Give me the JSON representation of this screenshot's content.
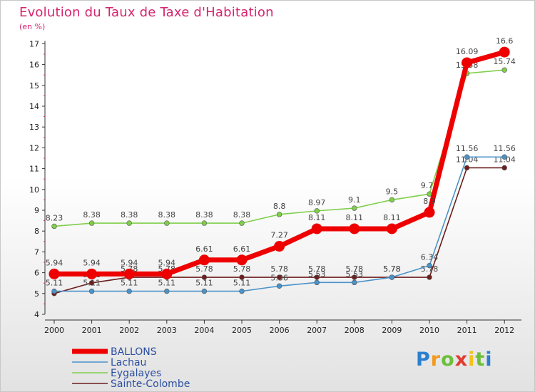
{
  "header": {
    "title": "Evolution du Taux de Taxe d'Habitation",
    "unit": "(en %)"
  },
  "logo": {
    "letters": [
      "P",
      "r",
      "o",
      "x",
      "i",
      "t",
      "i"
    ],
    "colors": [
      "#2a7fd0",
      "#f29a1e",
      "#6bbf3a",
      "#e23b2f",
      "#f2c21e",
      "#6bbf3a",
      "#2a7fd0"
    ]
  },
  "chart_data": {
    "type": "line",
    "title": "Evolution du Taux de Taxe d'Habitation",
    "ylabel": "(en %)",
    "xlabel": "",
    "ylim": [
      4,
      17
    ],
    "yticks": [
      4,
      5,
      6,
      7,
      8,
      9,
      10,
      11,
      12,
      13,
      14,
      15,
      16,
      17
    ],
    "x": [
      "2000",
      "2001",
      "2002",
      "2003",
      "2004",
      "2005",
      "2006",
      "2007",
      "2008",
      "2009",
      "2010",
      "2011",
      "2012"
    ],
    "grid": false,
    "legend": "bottom-left",
    "series": [
      {
        "name": "Sainte-Colombe",
        "color": "#6e1e1e",
        "values": [
          5.0,
          5.51,
          5.78,
          5.78,
          5.78,
          5.78,
          5.78,
          5.78,
          5.78,
          5.78,
          5.78,
          11.04,
          11.04
        ],
        "labels": [
          "",
          "5.51",
          "5.78",
          "5.78",
          "5.78",
          "5.78",
          "5.78",
          "5.78",
          "5.78",
          "5.78",
          "5.78",
          "11.04",
          "11.04"
        ]
      },
      {
        "name": "Lachau",
        "color": "#4a93c8",
        "values": [
          5.11,
          5.11,
          5.11,
          5.11,
          5.11,
          5.11,
          5.36,
          5.53,
          5.53,
          5.78,
          6.34,
          11.56,
          11.56
        ],
        "labels": [
          "5.11",
          "5.11",
          "5.11",
          "5.11",
          "5.11",
          "5.11",
          "5.36",
          "5.53",
          "5.53",
          "5.78",
          "6.34",
          "11.56",
          "11.56"
        ]
      },
      {
        "name": "Eygalayes",
        "color": "#7fcf4a",
        "values": [
          8.23,
          8.38,
          8.38,
          8.38,
          8.38,
          8.38,
          8.8,
          8.97,
          9.1,
          9.5,
          9.78,
          15.58,
          15.74
        ],
        "labels": [
          "8.23",
          "8.38",
          "8.38",
          "8.38",
          "8.38",
          "8.38",
          "8.8",
          "8.97",
          "9.1",
          "9.5",
          "9.78",
          "15.58",
          "15.74"
        ]
      },
      {
        "name": "BALLONS",
        "color": "#ee0000",
        "values": [
          5.94,
          5.94,
          5.94,
          5.94,
          6.61,
          6.61,
          7.27,
          8.11,
          8.11,
          8.11,
          8.9,
          16.09,
          16.6
        ],
        "labels": [
          "5.94",
          "5.94",
          "5.94",
          "5.94",
          "6.61",
          "6.61",
          "7.27",
          "8.11",
          "8.11",
          "8.11",
          "8.9",
          "16.09",
          "16.6"
        ]
      }
    ],
    "legend_order": [
      "BALLONS",
      "Lachau",
      "Eygalayes",
      "Sainte-Colombe"
    ]
  }
}
